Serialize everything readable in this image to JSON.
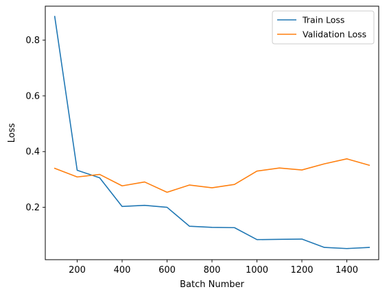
{
  "chart_data": {
    "type": "line",
    "title": "",
    "xlabel": "Batch Number",
    "ylabel": "Loss",
    "xlim": [
      58,
      1542
    ],
    "ylim": [
      0.012,
      0.922
    ],
    "xticks": [
      200,
      400,
      600,
      800,
      1000,
      1200,
      1400
    ],
    "yticks": [
      0.2,
      0.4,
      0.6,
      0.8
    ],
    "x": [
      100,
      200,
      300,
      400,
      500,
      600,
      700,
      800,
      900,
      1000,
      1100,
      1200,
      1300,
      1400,
      1500
    ],
    "series": [
      {
        "name": "Train Loss",
        "color": "#1f77b4",
        "values": [
          0.885,
          0.333,
          0.306,
          0.203,
          0.207,
          0.2,
          0.132,
          0.128,
          0.127,
          0.084,
          0.085,
          0.086,
          0.056,
          0.052,
          0.056
        ]
      },
      {
        "name": "Validation Loss",
        "color": "#ff7f0e",
        "values": [
          0.34,
          0.309,
          0.318,
          0.277,
          0.291,
          0.254,
          0.28,
          0.27,
          0.282,
          0.33,
          0.341,
          0.334,
          0.356,
          0.374,
          0.351
        ]
      }
    ],
    "grid": false,
    "legend_position": "top-right"
  }
}
